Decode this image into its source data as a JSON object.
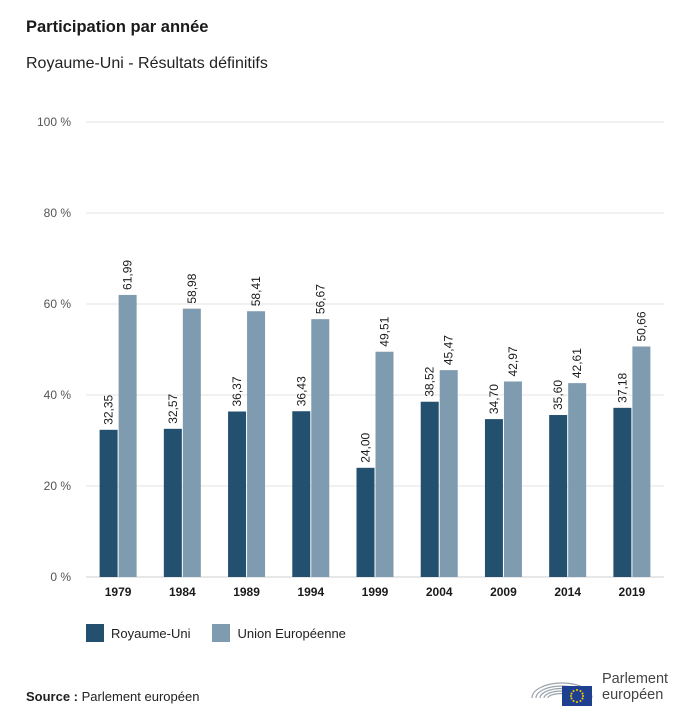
{
  "title": "Participation par année",
  "subtitle": "Royaume-Uni - Résultats définitifs",
  "source_label": "Source :",
  "source_value": "Parlement européen",
  "logo": {
    "line1": "Parlement",
    "line2": "européen"
  },
  "colors": {
    "uk": "#24506f",
    "eu": "#7f9bb0",
    "grid": "#e3e3e3",
    "axis_text": "#555555"
  },
  "chart_data": {
    "type": "bar",
    "categories": [
      "1979",
      "1984",
      "1989",
      "1994",
      "1999",
      "2004",
      "2009",
      "2014",
      "2019"
    ],
    "series": [
      {
        "name": "Royaume-Uni",
        "values": [
          32.35,
          32.57,
          36.37,
          36.43,
          24.0,
          38.52,
          34.7,
          35.6,
          37.18
        ],
        "labels": [
          "32,35",
          "32,57",
          "36,37",
          "36,43",
          "24,00",
          "38,52",
          "34,70",
          "35,60",
          "37,18"
        ]
      },
      {
        "name": "Union Européenne",
        "values": [
          61.99,
          58.98,
          58.41,
          56.67,
          49.51,
          45.47,
          42.97,
          42.61,
          50.66
        ],
        "labels": [
          "61,99",
          "58,98",
          "58,41",
          "56,67",
          "49,51",
          "45,47",
          "42,97",
          "42,61",
          "50,66"
        ]
      }
    ],
    "yticks": [
      "0 %",
      "20 %",
      "40 %",
      "60 %",
      "80 %",
      "100 %"
    ],
    "ylim": [
      0,
      100
    ],
    "grid": true,
    "legend_position": "bottom-left"
  }
}
